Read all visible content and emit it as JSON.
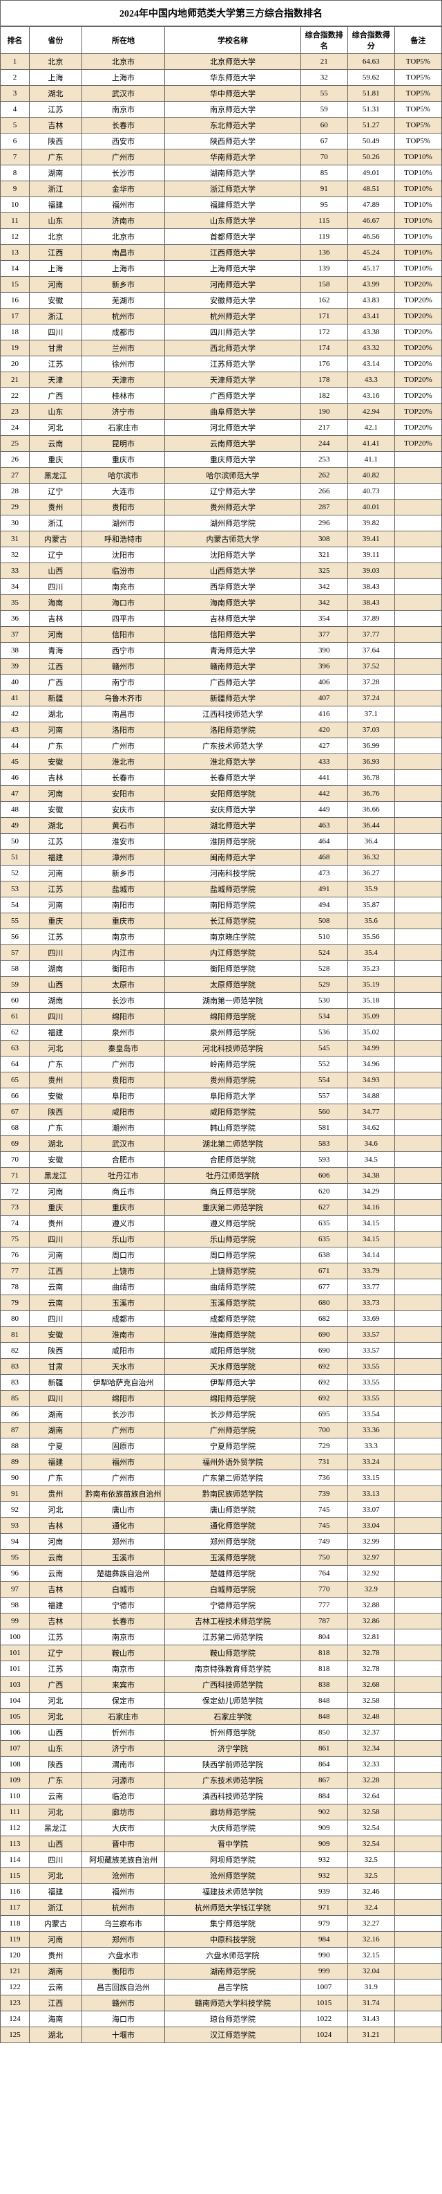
{
  "title": "2024年中国内地师范类大学第三方综合指数排名",
  "columns": [
    "排名",
    "省份",
    "所在地",
    "学校名称",
    "综合指数排名",
    "综合指数得分",
    "备注"
  ],
  "col_names": [
    "rank",
    "province",
    "city",
    "school",
    "idx-rank",
    "idx-score",
    "remark"
  ],
  "rows": [
    [
      "1",
      "北京",
      "北京市",
      "北京师范大学",
      "21",
      "64.63",
      "TOP5%"
    ],
    [
      "2",
      "上海",
      "上海市",
      "华东师范大学",
      "32",
      "59.62",
      "TOP5%"
    ],
    [
      "3",
      "湖北",
      "武汉市",
      "华中师范大学",
      "55",
      "51.81",
      "TOP5%"
    ],
    [
      "4",
      "江苏",
      "南京市",
      "南京师范大学",
      "59",
      "51.31",
      "TOP5%"
    ],
    [
      "5",
      "吉林",
      "长春市",
      "东北师范大学",
      "60",
      "51.27",
      "TOP5%"
    ],
    [
      "6",
      "陕西",
      "西安市",
      "陕西师范大学",
      "67",
      "50.49",
      "TOP5%"
    ],
    [
      "7",
      "广东",
      "广州市",
      "华南师范大学",
      "70",
      "50.26",
      "TOP10%"
    ],
    [
      "8",
      "湖南",
      "长沙市",
      "湖南师范大学",
      "85",
      "49.01",
      "TOP10%"
    ],
    [
      "9",
      "浙江",
      "金华市",
      "浙江师范大学",
      "91",
      "48.51",
      "TOP10%"
    ],
    [
      "10",
      "福建",
      "福州市",
      "福建师范大学",
      "95",
      "47.89",
      "TOP10%"
    ],
    [
      "11",
      "山东",
      "济南市",
      "山东师范大学",
      "115",
      "46.67",
      "TOP10%"
    ],
    [
      "12",
      "北京",
      "北京市",
      "首都师范大学",
      "119",
      "46.56",
      "TOP10%"
    ],
    [
      "13",
      "江西",
      "南昌市",
      "江西师范大学",
      "136",
      "45.24",
      "TOP10%"
    ],
    [
      "14",
      "上海",
      "上海市",
      "上海师范大学",
      "139",
      "45.17",
      "TOP10%"
    ],
    [
      "15",
      "河南",
      "新乡市",
      "河南师范大学",
      "158",
      "43.99",
      "TOP20%"
    ],
    [
      "16",
      "安徽",
      "芜湖市",
      "安徽师范大学",
      "162",
      "43.83",
      "TOP20%"
    ],
    [
      "17",
      "浙江",
      "杭州市",
      "杭州师范大学",
      "171",
      "43.41",
      "TOP20%"
    ],
    [
      "18",
      "四川",
      "成都市",
      "四川师范大学",
      "172",
      "43.38",
      "TOP20%"
    ],
    [
      "19",
      "甘肃",
      "兰州市",
      "西北师范大学",
      "174",
      "43.32",
      "TOP20%"
    ],
    [
      "20",
      "江苏",
      "徐州市",
      "江苏师范大学",
      "176",
      "43.14",
      "TOP20%"
    ],
    [
      "21",
      "天津",
      "天津市",
      "天津师范大学",
      "178",
      "43.3",
      "TOP20%"
    ],
    [
      "22",
      "广西",
      "桂林市",
      "广西师范大学",
      "182",
      "43.16",
      "TOP20%"
    ],
    [
      "23",
      "山东",
      "济宁市",
      "曲阜师范大学",
      "190",
      "42.94",
      "TOP20%"
    ],
    [
      "24",
      "河北",
      "石家庄市",
      "河北师范大学",
      "217",
      "42.1",
      "TOP20%"
    ],
    [
      "25",
      "云南",
      "昆明市",
      "云南师范大学",
      "244",
      "41.41",
      "TOP20%"
    ],
    [
      "26",
      "重庆",
      "重庆市",
      "重庆师范大学",
      "253",
      "41.1",
      ""
    ],
    [
      "27",
      "黑龙江",
      "哈尔滨市",
      "哈尔滨师范大学",
      "262",
      "40.82",
      ""
    ],
    [
      "28",
      "辽宁",
      "大连市",
      "辽宁师范大学",
      "266",
      "40.73",
      ""
    ],
    [
      "29",
      "贵州",
      "贵阳市",
      "贵州师范大学",
      "287",
      "40.01",
      ""
    ],
    [
      "30",
      "浙江",
      "湖州市",
      "湖州师范学院",
      "296",
      "39.82",
      ""
    ],
    [
      "31",
      "内蒙古",
      "呼和浩特市",
      "内蒙古师范大学",
      "308",
      "39.41",
      ""
    ],
    [
      "32",
      "辽宁",
      "沈阳市",
      "沈阳师范大学",
      "321",
      "39.11",
      ""
    ],
    [
      "33",
      "山西",
      "临汾市",
      "山西师范大学",
      "325",
      "39.03",
      ""
    ],
    [
      "34",
      "四川",
      "南充市",
      "西华师范大学",
      "342",
      "38.43",
      ""
    ],
    [
      "35",
      "海南",
      "海口市",
      "海南师范大学",
      "342",
      "38.43",
      ""
    ],
    [
      "36",
      "吉林",
      "四平市",
      "吉林师范大学",
      "354",
      "37.89",
      ""
    ],
    [
      "37",
      "河南",
      "信阳市",
      "信阳师范大学",
      "377",
      "37.77",
      ""
    ],
    [
      "38",
      "青海",
      "西宁市",
      "青海师范大学",
      "390",
      "37.64",
      ""
    ],
    [
      "39",
      "江西",
      "赣州市",
      "赣南师范大学",
      "396",
      "37.52",
      ""
    ],
    [
      "40",
      "广西",
      "南宁市",
      "广西师范大学",
      "406",
      "37.28",
      ""
    ],
    [
      "41",
      "新疆",
      "乌鲁木齐市",
      "新疆师范大学",
      "407",
      "37.24",
      ""
    ],
    [
      "42",
      "湖北",
      "南昌市",
      "江西科技师范大学",
      "416",
      "37.1",
      ""
    ],
    [
      "43",
      "河南",
      "洛阳市",
      "洛阳师范学院",
      "420",
      "37.03",
      ""
    ],
    [
      "44",
      "广东",
      "广州市",
      "广东技术师范大学",
      "427",
      "36.99",
      ""
    ],
    [
      "45",
      "安徽",
      "淮北市",
      "淮北师范大学",
      "433",
      "36.93",
      ""
    ],
    [
      "46",
      "吉林",
      "长春市",
      "长春师范大学",
      "441",
      "36.78",
      ""
    ],
    [
      "47",
      "河南",
      "安阳市",
      "安阳师范学院",
      "442",
      "36.76",
      ""
    ],
    [
      "48",
      "安徽",
      "安庆市",
      "安庆师范大学",
      "449",
      "36.66",
      ""
    ],
    [
      "49",
      "湖北",
      "黄石市",
      "湖北师范大学",
      "463",
      "36.44",
      ""
    ],
    [
      "50",
      "江苏",
      "淮安市",
      "淮阴师范学院",
      "464",
      "36.4",
      ""
    ],
    [
      "51",
      "福建",
      "漳州市",
      "闽南师范大学",
      "468",
      "36.32",
      ""
    ],
    [
      "52",
      "河南",
      "新乡市",
      "河南科技学院",
      "473",
      "36.27",
      ""
    ],
    [
      "53",
      "江苏",
      "盐城市",
      "盐城师范学院",
      "491",
      "35.9",
      ""
    ],
    [
      "54",
      "河南",
      "南阳市",
      "南阳师范学院",
      "494",
      "35.87",
      ""
    ],
    [
      "55",
      "重庆",
      "重庆市",
      "长江师范学院",
      "508",
      "35.6",
      ""
    ],
    [
      "56",
      "江苏",
      "南京市",
      "南京晓庄学院",
      "510",
      "35.56",
      ""
    ],
    [
      "57",
      "四川",
      "内江市",
      "内江师范学院",
      "524",
      "35.4",
      ""
    ],
    [
      "58",
      "湖南",
      "衡阳市",
      "衡阳师范学院",
      "528",
      "35.23",
      ""
    ],
    [
      "59",
      "山西",
      "太原市",
      "太原师范学院",
      "529",
      "35.19",
      ""
    ],
    [
      "60",
      "湖南",
      "长沙市",
      "湖南第一师范学院",
      "530",
      "35.18",
      ""
    ],
    [
      "61",
      "四川",
      "绵阳市",
      "绵阳师范学院",
      "534",
      "35.09",
      ""
    ],
    [
      "62",
      "福建",
      "泉州市",
      "泉州师范学院",
      "536",
      "35.02",
      ""
    ],
    [
      "63",
      "河北",
      "秦皇岛市",
      "河北科技师范学院",
      "545",
      "34.99",
      ""
    ],
    [
      "64",
      "广东",
      "广州市",
      "岭南师范学院",
      "552",
      "34.96",
      ""
    ],
    [
      "65",
      "贵州",
      "贵阳市",
      "贵州师范学院",
      "554",
      "34.93",
      ""
    ],
    [
      "66",
      "安徽",
      "阜阳市",
      "阜阳师范大学",
      "557",
      "34.88",
      ""
    ],
    [
      "67",
      "陕西",
      "咸阳市",
      "咸阳师范学院",
      "560",
      "34.77",
      ""
    ],
    [
      "68",
      "广东",
      "潮州市",
      "韩山师范学院",
      "581",
      "34.62",
      ""
    ],
    [
      "69",
      "湖北",
      "武汉市",
      "湖北第二师范学院",
      "583",
      "34.6",
      ""
    ],
    [
      "70",
      "安徽",
      "合肥市",
      "合肥师范学院",
      "593",
      "34.5",
      ""
    ],
    [
      "71",
      "黑龙江",
      "牡丹江市",
      "牡丹江师范学院",
      "606",
      "34.38",
      ""
    ],
    [
      "72",
      "河南",
      "商丘市",
      "商丘师范学院",
      "620",
      "34.29",
      ""
    ],
    [
      "73",
      "重庆",
      "重庆市",
      "重庆第二师范学院",
      "627",
      "34.16",
      ""
    ],
    [
      "74",
      "贵州",
      "遵义市",
      "遵义师范学院",
      "635",
      "34.15",
      ""
    ],
    [
      "75",
      "四川",
      "乐山市",
      "乐山师范学院",
      "635",
      "34.15",
      ""
    ],
    [
      "76",
      "河南",
      "周口市",
      "周口师范学院",
      "638",
      "34.14",
      ""
    ],
    [
      "77",
      "江西",
      "上饶市",
      "上饶师范学院",
      "671",
      "33.79",
      ""
    ],
    [
      "78",
      "云南",
      "曲靖市",
      "曲靖师范学院",
      "677",
      "33.77",
      ""
    ],
    [
      "79",
      "云南",
      "玉溪市",
      "玉溪师范学院",
      "680",
      "33.73",
      ""
    ],
    [
      "80",
      "四川",
      "成都市",
      "成都师范学院",
      "682",
      "33.69",
      ""
    ],
    [
      "81",
      "安徽",
      "淮南市",
      "淮南师范学院",
      "690",
      "33.57",
      ""
    ],
    [
      "82",
      "陕西",
      "咸阳市",
      "咸阳师范学院",
      "690",
      "33.57",
      ""
    ],
    [
      "83",
      "甘肃",
      "天水市",
      "天水师范学院",
      "692",
      "33.55",
      ""
    ],
    [
      "83",
      "新疆",
      "伊犁哈萨克自治州",
      "伊犁师范大学",
      "692",
      "33.55",
      ""
    ],
    [
      "85",
      "四川",
      "绵阳市",
      "绵阳师范学院",
      "692",
      "33.55",
      ""
    ],
    [
      "86",
      "湖南",
      "长沙市",
      "长沙师范学院",
      "695",
      "33.54",
      ""
    ],
    [
      "87",
      "湖南",
      "广州市",
      "广州师范学院",
      "700",
      "33.36",
      ""
    ],
    [
      "88",
      "宁夏",
      "固原市",
      "宁夏师范学院",
      "729",
      "33.3",
      ""
    ],
    [
      "89",
      "福建",
      "福州市",
      "福州外语外贸学院",
      "731",
      "33.24",
      ""
    ],
    [
      "90",
      "广东",
      "广州市",
      "广东第二师范学院",
      "736",
      "33.15",
      ""
    ],
    [
      "91",
      "贵州",
      "黔南布依族苗族自治州",
      "黔南民族师范学院",
      "739",
      "33.13",
      ""
    ],
    [
      "92",
      "河北",
      "唐山市",
      "唐山师范学院",
      "745",
      "33.07",
      ""
    ],
    [
      "93",
      "吉林",
      "通化市",
      "通化师范学院",
      "745",
      "33.04",
      ""
    ],
    [
      "94",
      "河南",
      "郑州市",
      "郑州师范学院",
      "749",
      "32.99",
      ""
    ],
    [
      "95",
      "云南",
      "玉溪市",
      "玉溪师范学院",
      "750",
      "32.97",
      ""
    ],
    [
      "96",
      "云南",
      "楚雄彝族自治州",
      "楚雄师范学院",
      "764",
      "32.92",
      ""
    ],
    [
      "97",
      "吉林",
      "白城市",
      "白城师范学院",
      "770",
      "32.9",
      ""
    ],
    [
      "98",
      "福建",
      "宁德市",
      "宁德师范学院",
      "777",
      "32.88",
      ""
    ],
    [
      "99",
      "吉林",
      "长春市",
      "吉林工程技术师范学院",
      "787",
      "32.86",
      ""
    ],
    [
      "100",
      "江苏",
      "南京市",
      "江苏第二师范学院",
      "804",
      "32.81",
      ""
    ],
    [
      "101",
      "辽宁",
      "鞍山市",
      "鞍山师范学院",
      "818",
      "32.78",
      ""
    ],
    [
      "101",
      "江苏",
      "南京市",
      "南京特殊教育师范学院",
      "818",
      "32.78",
      ""
    ],
    [
      "103",
      "广西",
      "来宾市",
      "广西科技师范学院",
      "838",
      "32.68",
      ""
    ],
    [
      "104",
      "河北",
      "保定市",
      "保定幼儿师范学院",
      "848",
      "32.58",
      ""
    ],
    [
      "105",
      "河北",
      "石家庄市",
      "石家庄学院",
      "848",
      "32.48",
      ""
    ],
    [
      "106",
      "山西",
      "忻州市",
      "忻州师范学院",
      "850",
      "32.37",
      ""
    ],
    [
      "107",
      "山东",
      "济宁市",
      "济宁学院",
      "861",
      "32.34",
      ""
    ],
    [
      "108",
      "陕西",
      "渭南市",
      "陕西学前师范学院",
      "864",
      "32.33",
      ""
    ],
    [
      "109",
      "广东",
      "河源市",
      "广东技术师范学院",
      "867",
      "32.28",
      ""
    ],
    [
      "110",
      "云南",
      "临沧市",
      "滇西科技师范学院",
      "884",
      "32.64",
      ""
    ],
    [
      "111",
      "河北",
      "廊坊市",
      "廊坊师范学院",
      "902",
      "32.58",
      ""
    ],
    [
      "112",
      "黑龙江",
      "大庆市",
      "大庆师范学院",
      "909",
      "32.54",
      ""
    ],
    [
      "113",
      "山西",
      "晋中市",
      "晋中学院",
      "909",
      "32.54",
      ""
    ],
    [
      "114",
      "四川",
      "阿坝藏族羌族自治州",
      "阿坝师范学院",
      "932",
      "32.5",
      ""
    ],
    [
      "115",
      "河北",
      "沧州市",
      "沧州师范学院",
      "932",
      "32.5",
      ""
    ],
    [
      "116",
      "福建",
      "福州市",
      "福建技术师范学院",
      "939",
      "32.46",
      ""
    ],
    [
      "117",
      "浙江",
      "杭州市",
      "杭州师范大学钱江学院",
      "971",
      "32.4",
      ""
    ],
    [
      "118",
      "内蒙古",
      "乌兰察布市",
      "集宁师范学院",
      "979",
      "32.27",
      ""
    ],
    [
      "119",
      "河南",
      "郑州市",
      "中原科技学院",
      "984",
      "32.16",
      ""
    ],
    [
      "120",
      "贵州",
      "六盘水市",
      "六盘水师范学院",
      "990",
      "32.15",
      ""
    ],
    [
      "121",
      "湖南",
      "衡阳市",
      "湖南师范学院",
      "999",
      "32.04",
      ""
    ],
    [
      "122",
      "云南",
      "昌吉回族自治州",
      "昌吉学院",
      "1007",
      "31.9",
      ""
    ],
    [
      "123",
      "江西",
      "赣州市",
      "赣南师范大学科技学院",
      "1015",
      "31.74",
      ""
    ],
    [
      "124",
      "海南",
      "海口市",
      "琼台师范学院",
      "1022",
      "31.43",
      ""
    ],
    [
      "125",
      "湖北",
      "十堰市",
      "汉江师范学院",
      "1024",
      "31.21",
      ""
    ]
  ],
  "header_bg": "#ffffff",
  "odd_bg": "#f2e3c9",
  "even_bg": "#ffffff",
  "border_color": "#666666"
}
